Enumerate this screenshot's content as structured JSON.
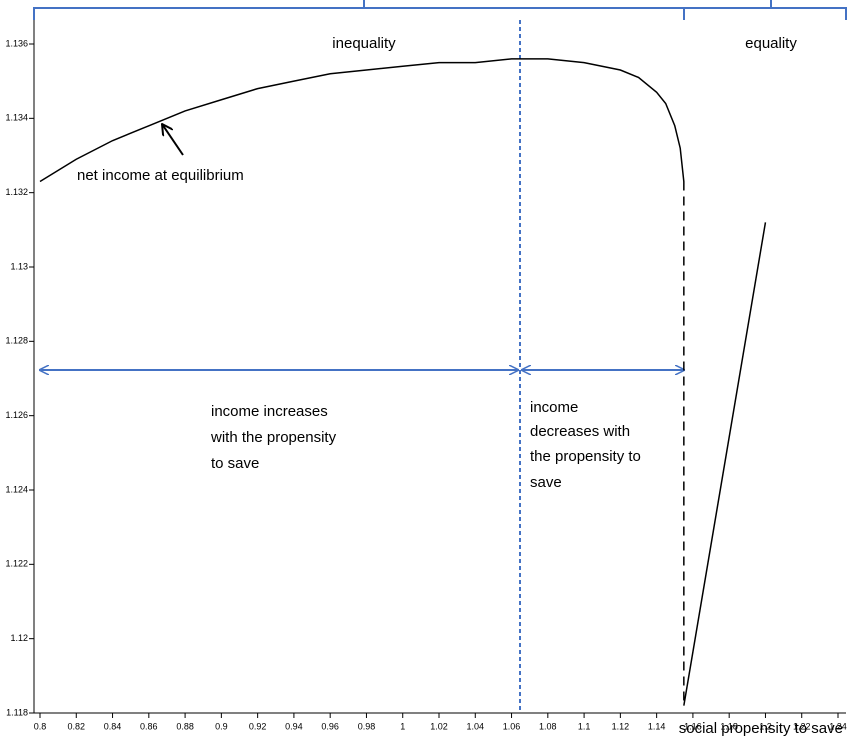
{
  "chart_data": {
    "type": "line",
    "xlabel": "social propensity to save",
    "annotations": {
      "inequality": "inequality",
      "equality": "equality",
      "curve_note": "net income at equilibrium",
      "increase_note": [
        "income increases",
        "with the propensity",
        "to save"
      ],
      "decrease_note": [
        "income",
        "decreases with",
        "the propensity to",
        "save"
      ]
    },
    "series": [
      {
        "color": "#000000",
        "dashed": false,
        "x": [
          0.8,
          0.82,
          0.84,
          0.86,
          0.88,
          0.9,
          0.92,
          0.94,
          0.96,
          0.98,
          1.0,
          1.02,
          1.04,
          1.06,
          1.08,
          1.1,
          1.12,
          1.13,
          1.14,
          1.145,
          1.15,
          1.153,
          1.155
        ],
        "values": [
          1.1323,
          1.1329,
          1.1334,
          1.1338,
          1.1342,
          1.1345,
          1.1348,
          1.135,
          1.1352,
          1.1353,
          1.1354,
          1.1355,
          1.1355,
          1.1356,
          1.1356,
          1.1355,
          1.1353,
          1.1351,
          1.1347,
          1.1344,
          1.1338,
          1.1332,
          1.1323
        ]
      },
      {
        "color": "#000000",
        "dashed": true,
        "x": [
          1.155,
          1.155
        ],
        "values": [
          1.1323,
          1.1182
        ]
      },
      {
        "color": "#000000",
        "dashed": false,
        "x": [
          1.155,
          1.2
        ],
        "values": [
          1.1182,
          1.1312
        ]
      }
    ],
    "xlim": [
      0.8,
      1.24
    ],
    "xticks": [
      0.8,
      0.82,
      0.84,
      0.86,
      0.88,
      0.9,
      0.92,
      0.94,
      0.96,
      0.98,
      1,
      1.02,
      1.04,
      1.06,
      1.08,
      1.1,
      1.12,
      1.14,
      1.16,
      1.18,
      1.2,
      1.22,
      1.24
    ],
    "ylim": [
      1.118,
      1.136
    ],
    "yticks": [
      1.118,
      1.12,
      1.122,
      1.124,
      1.126,
      1.128,
      1.13,
      1.132,
      1.134,
      1.136
    ]
  }
}
